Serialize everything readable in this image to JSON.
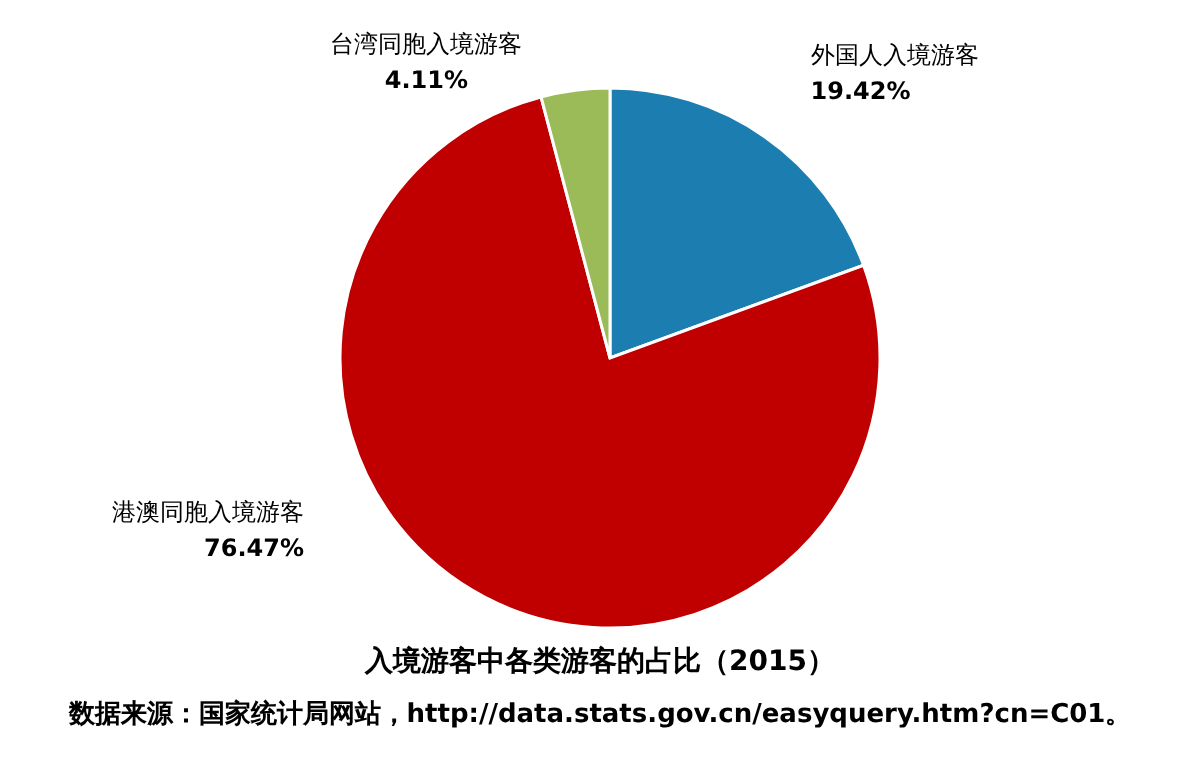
{
  "chart_data": {
    "type": "pie",
    "title": "入境游客中各类游客的占比（2015）",
    "categories": [
      "外国人入境游客",
      "港澳同胞入境游客",
      "台湾同胞入境游客"
    ],
    "values": [
      19.42,
      76.47,
      4.11
    ],
    "value_labels": [
      "19.42%",
      "76.47%",
      "4.11%"
    ],
    "colors": [
      "#1b7db0",
      "#c00000",
      "#9bbb59"
    ],
    "legend": false,
    "annotations": [
      "数据来源：国家统计局网站，http://data.stats.gov.cn/easyquery.htm?cn=C01。"
    ]
  }
}
